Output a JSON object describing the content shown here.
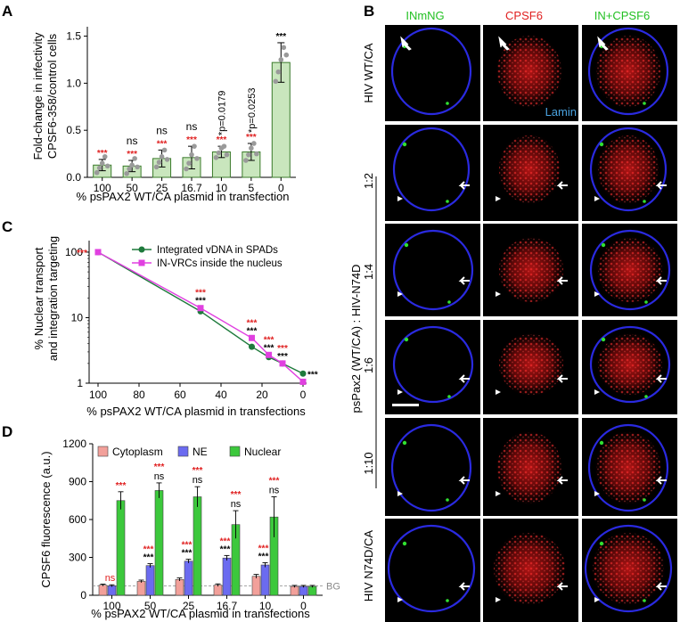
{
  "panel_letters": [
    "A",
    "B",
    "C",
    "D"
  ],
  "chart_data": [
    {
      "panel": "A",
      "type": "bar",
      "categories": [
        "100",
        "50",
        "25",
        "16.7",
        "10",
        "5",
        "0"
      ],
      "values": [
        0.13,
        0.12,
        0.2,
        0.21,
        0.27,
        0.27,
        1.22
      ],
      "errors": [
        0.06,
        0.06,
        0.09,
        0.12,
        0.06,
        0.09,
        0.21
      ],
      "points": [
        [
          0.05,
          0.1,
          0.15,
          0.22,
          0.12
        ],
        [
          0.04,
          0.09,
          0.13,
          0.2,
          0.11
        ],
        [
          0.11,
          0.16,
          0.22,
          0.29,
          0.19
        ],
        [
          0.09,
          0.15,
          0.24,
          0.33,
          0.2
        ],
        [
          0.21,
          0.26,
          0.31,
          0.33,
          0.24
        ],
        [
          0.18,
          0.24,
          0.31,
          0.36,
          0.25
        ],
        [
          1.02,
          1.12,
          1.25,
          1.38,
          1.3
        ]
      ],
      "sig_red": [
        "***",
        "***",
        "***",
        "***",
        "***",
        "***",
        ""
      ],
      "sig_black": [
        "",
        "ns",
        "ns",
        "ns",
        "*p=0.0179",
        "*p=0.0253",
        "***"
      ],
      "ylabel": "Fold-change in infectivity CPSF6-358/control cells",
      "ylabel_lines": [
        "Fold-change in infectivity",
        "CPSF6-358/control cells"
      ],
      "xlabel": "% psPAX2 WT/CA plasmid in transfection",
      "yticks": [
        0.0,
        0.5,
        1.0,
        1.5
      ],
      "ytick_labels": [
        "0.0",
        "0.5",
        "1.0",
        "1.5"
      ],
      "ylim": [
        0,
        1.6
      ],
      "bar_color": "#c9e6bd",
      "bar_edge": "#3a7a2a"
    },
    {
      "panel": "C",
      "type": "line",
      "x": [
        100,
        50,
        25,
        16.7,
        10,
        0
      ],
      "series": [
        {
          "name": "Integrated vDNA in SPADs",
          "color": "#1e7a3c",
          "values": [
            100,
            12.5,
            3.6,
            2.5,
            2.0,
            1.4
          ]
        },
        {
          "name": "IN-VRCs inside the nucleus",
          "color": "#e040e0",
          "values": [
            100,
            14,
            4.9,
            2.7,
            2.0,
            1.05
          ]
        }
      ],
      "annotations": [
        {
          "x": 100,
          "red": "***",
          "black": ""
        },
        {
          "x": 50,
          "red": "***",
          "black": "***"
        },
        {
          "x": 25,
          "red": "***",
          "black": "***"
        },
        {
          "x": 16.7,
          "red": "***",
          "black": "***"
        },
        {
          "x": 10,
          "red": "***",
          "black": "***"
        },
        {
          "x": 0,
          "red": "",
          "black": "***"
        }
      ],
      "ylabel": "% Nuclear transport and integration targeting",
      "ylabel_lines": [
        "% Nuclear transport",
        "and integration targeting"
      ],
      "xlabel": "% psPAX2 WT/CA plasmid in transfections",
      "xticks": [
        100,
        80,
        60,
        40,
        20,
        0
      ],
      "xtick_labels": [
        "100",
        "80",
        "60",
        "40",
        "20",
        "0"
      ],
      "yticks": [
        1,
        10,
        100
      ],
      "ytick_labels": [
        "1",
        "10",
        "100"
      ],
      "yscale": "log",
      "ylim": [
        1,
        150
      ],
      "xlim": [
        100,
        0
      ],
      "legend_position": "top-right"
    },
    {
      "panel": "D",
      "type": "bar",
      "categories": [
        "100",
        "50",
        "25",
        "16.7",
        "10",
        "0"
      ],
      "series": [
        {
          "name": "Cytoplasm",
          "color": "#f2a09a",
          "values": [
            80,
            110,
            125,
            80,
            150,
            70
          ],
          "errors": [
            8,
            10,
            12,
            10,
            15,
            8
          ]
        },
        {
          "name": "NE",
          "color": "#6b6bf0",
          "values": [
            75,
            235,
            270,
            295,
            240,
            70
          ],
          "errors": [
            8,
            15,
            15,
            20,
            18,
            8
          ]
        },
        {
          "name": "Nuclear",
          "color": "#3cc83c",
          "values": [
            750,
            830,
            780,
            560,
            620,
            70
          ],
          "errors": [
            70,
            60,
            80,
            110,
            160,
            8
          ]
        }
      ],
      "annotations_top": [
        {
          "cat": "100",
          "lines": [
            "***"
          ]
        },
        {
          "cat": "50",
          "lines": [
            "***",
            "ns"
          ]
        },
        {
          "cat": "25",
          "lines": [
            "***",
            "ns"
          ]
        },
        {
          "cat": "16.7",
          "lines": [
            "***",
            "ns"
          ]
        },
        {
          "cat": "10",
          "lines": [
            "***",
            "ns"
          ]
        }
      ],
      "annotations_ne": [
        {
          "cat": "100",
          "red": "ns",
          "black": ""
        },
        {
          "cat": "50",
          "red": "***",
          "black": "***"
        },
        {
          "cat": "25",
          "red": "***",
          "black": "***"
        },
        {
          "cat": "16.7",
          "red": "***",
          "black": "***"
        },
        {
          "cat": "10",
          "red": "***",
          "black": "***"
        }
      ],
      "ylabel": "CPSF6 fluorescence (a.u.)",
      "xlabel": "% psPAX2 WT/CA plasmid in transfections",
      "yticks": [
        0,
        300,
        600,
        900,
        1200
      ],
      "ytick_labels": [
        "0",
        "300",
        "600",
        "900",
        "1200"
      ],
      "ylim": [
        0,
        1200
      ],
      "baseline": {
        "value": 75,
        "label": "BG"
      },
      "legend_position": "top"
    }
  ],
  "panel_b": {
    "column_headers": [
      {
        "label": "INmNG",
        "color": "#22c022"
      },
      {
        "label": "CPSF6",
        "color": "#e02020"
      },
      {
        "label": "IN+CPSF6",
        "color": "#22c022"
      }
    ],
    "row_labels": [
      "HIV WT/CA",
      "1:2",
      "1:4",
      "1:6",
      "1:10",
      "HIV N74D/CA"
    ],
    "group_label": "psPax2 (WT/CA) : HIV-N74D",
    "lamin_label": "Lamin",
    "lamin_color": "#4aa3e0"
  }
}
